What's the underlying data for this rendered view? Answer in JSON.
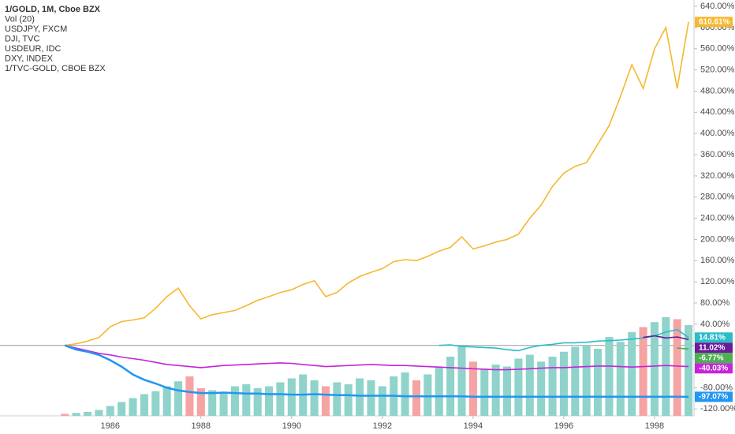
{
  "chart_data": {
    "type": "line",
    "x": [
      1985,
      1985.25,
      1985.5,
      1985.75,
      1986,
      1986.25,
      1986.5,
      1986.75,
      1987,
      1987.25,
      1987.5,
      1987.75,
      1988,
      1988.25,
      1988.5,
      1988.75,
      1989,
      1989.25,
      1989.5,
      1989.75,
      1990,
      1990.25,
      1990.5,
      1990.75,
      1991,
      1991.25,
      1991.5,
      1991.75,
      1992,
      1992.25,
      1992.5,
      1992.75,
      1993,
      1993.25,
      1993.5,
      1993.75,
      1994,
      1994.25,
      1994.5,
      1994.75,
      1995,
      1995.25,
      1995.5,
      1995.75,
      1996,
      1996.25,
      1996.5,
      1996.75,
      1997,
      1997.25,
      1997.5,
      1997.75,
      1998,
      1998.25,
      1998.5,
      1998.75
    ],
    "xlim": [
      1983.57,
      1998.87
    ],
    "xticks": [
      1986,
      1988,
      1990,
      1992,
      1994,
      1996,
      1998
    ],
    "ylim": [
      -133,
      652
    ],
    "yticks": [
      {
        "value": -120,
        "label": "-120.00%"
      },
      {
        "value": -80,
        "label": "-80.00%"
      },
      {
        "value": 40,
        "label": "40.00%"
      },
      {
        "value": 80,
        "label": "80.00%"
      },
      {
        "value": 120,
        "label": "120.00%"
      },
      {
        "value": 160,
        "label": "160.00%"
      },
      {
        "value": 200,
        "label": "200.00%"
      },
      {
        "value": 240,
        "label": "240.00%"
      },
      {
        "value": 280,
        "label": "280.00%"
      },
      {
        "value": 320,
        "label": "320.00%"
      },
      {
        "value": 360,
        "label": "360.00%"
      },
      {
        "value": 400,
        "label": "400.00%"
      },
      {
        "value": 440,
        "label": "440.00%"
      },
      {
        "value": 480,
        "label": "480.00%"
      },
      {
        "value": 520,
        "label": "520.00%"
      },
      {
        "value": 560,
        "label": "560.00%"
      },
      {
        "value": 600,
        "label": "600.00%"
      },
      {
        "value": 640,
        "label": "640.00%"
      }
    ],
    "series": [
      {
        "name": "1/GOLD, 1M, Cboe BZX",
        "color": "#f5b82e",
        "values": [
          0,
          3,
          8,
          15,
          35,
          45,
          48,
          52,
          70,
          92,
          108,
          75,
          50,
          58,
          62,
          66,
          75,
          85,
          92,
          100,
          105,
          115,
          122,
          92,
          100,
          118,
          130,
          138,
          145,
          158,
          162,
          160,
          168,
          178,
          185,
          205,
          182,
          188,
          195,
          200,
          210,
          240,
          265,
          300,
          325,
          338,
          345,
          380,
          415,
          470,
          530,
          485,
          560,
          600,
          485,
          610.61
        ],
        "value_labels": [
          null,
          null,
          null,
          null,
          null,
          null,
          null,
          null,
          null,
          null,
          null,
          null,
          null,
          null,
          null,
          null,
          null,
          null,
          null,
          null,
          null,
          null,
          null,
          null,
          null,
          null,
          null,
          null,
          null,
          null,
          null,
          null,
          null,
          null,
          null,
          null,
          null,
          null,
          null,
          null,
          null,
          null,
          null,
          null,
          null,
          null,
          null,
          null,
          null,
          null,
          null,
          null,
          null,
          null,
          null,
          "610.61%"
        ]
      },
      {
        "name": "USDJPY, FXCM",
        "color": "#c425d6",
        "values": [
          0,
          -5,
          -10,
          -15,
          -18,
          -22,
          -25,
          -28,
          -32,
          -36,
          -38,
          -40,
          -42,
          -40,
          -38,
          -37,
          -36,
          -35,
          -34,
          -33,
          -34,
          -36,
          -38,
          -40,
          -39,
          -38,
          -37,
          -36,
          -37,
          -38,
          -38,
          -39,
          -40,
          -41,
          -42,
          -43,
          -44,
          -45,
          -46,
          -46,
          -45,
          -44,
          -43,
          -42,
          -42,
          -41,
          -40,
          -39,
          -39,
          -40,
          -41,
          -40,
          -39,
          -38,
          -39,
          -40.03
        ],
        "value_labels": [
          null,
          null,
          null,
          null,
          null,
          null,
          null,
          null,
          null,
          null,
          null,
          null,
          null,
          null,
          null,
          null,
          null,
          null,
          null,
          null,
          null,
          null,
          null,
          null,
          null,
          null,
          null,
          null,
          null,
          null,
          null,
          null,
          null,
          null,
          null,
          null,
          null,
          null,
          null,
          null,
          null,
          null,
          null,
          null,
          null,
          null,
          null,
          null,
          null,
          null,
          null,
          null,
          null,
          null,
          null,
          "-40.03%"
        ]
      },
      {
        "name": "DJI, TVC",
        "color": "#4caf50",
        "values": [
          null,
          null,
          null,
          null,
          null,
          null,
          null,
          null,
          null,
          null,
          null,
          null,
          null,
          null,
          null,
          null,
          null,
          null,
          null,
          null,
          null,
          null,
          null,
          null,
          null,
          null,
          null,
          null,
          null,
          null,
          null,
          null,
          null,
          null,
          null,
          null,
          null,
          null,
          null,
          null,
          null,
          null,
          null,
          null,
          null,
          null,
          null,
          null,
          null,
          null,
          null,
          null,
          null,
          null,
          -5,
          -6.77
        ],
        "value_labels": [
          null,
          null,
          null,
          null,
          null,
          null,
          null,
          null,
          null,
          null,
          null,
          null,
          null,
          null,
          null,
          null,
          null,
          null,
          null,
          null,
          null,
          null,
          null,
          null,
          null,
          null,
          null,
          null,
          null,
          null,
          null,
          null,
          null,
          null,
          null,
          null,
          null,
          null,
          null,
          null,
          null,
          null,
          null,
          null,
          null,
          null,
          null,
          null,
          null,
          null,
          null,
          null,
          null,
          null,
          null,
          "-6.77%"
        ]
      },
      {
        "name": "USDEUR, IDC",
        "color": "#2bbcc8",
        "values": [
          null,
          null,
          null,
          null,
          null,
          null,
          null,
          null,
          null,
          null,
          null,
          null,
          null,
          null,
          null,
          null,
          null,
          null,
          null,
          null,
          null,
          null,
          null,
          null,
          null,
          null,
          null,
          null,
          null,
          null,
          null,
          null,
          null,
          0,
          1,
          -2,
          -3,
          -4,
          -5,
          -8,
          -10,
          -4,
          0,
          2,
          5,
          5,
          6,
          8,
          9,
          10,
          12,
          14,
          18,
          25,
          30,
          14.81
        ],
        "value_labels": [
          null,
          null,
          null,
          null,
          null,
          null,
          null,
          null,
          null,
          null,
          null,
          null,
          null,
          null,
          null,
          null,
          null,
          null,
          null,
          null,
          null,
          null,
          null,
          null,
          null,
          null,
          null,
          null,
          null,
          null,
          null,
          null,
          null,
          null,
          null,
          null,
          null,
          null,
          null,
          null,
          null,
          null,
          null,
          null,
          null,
          null,
          null,
          null,
          null,
          null,
          null,
          null,
          null,
          null,
          null,
          "14.81%"
        ]
      },
      {
        "name": "DXY, INDEX",
        "color": "#6a1b9a",
        "values": [
          null,
          null,
          null,
          null,
          null,
          null,
          null,
          null,
          null,
          null,
          null,
          null,
          null,
          null,
          null,
          null,
          null,
          null,
          null,
          null,
          null,
          null,
          null,
          null,
          null,
          null,
          null,
          null,
          null,
          null,
          null,
          null,
          null,
          null,
          null,
          null,
          null,
          null,
          null,
          null,
          null,
          null,
          null,
          null,
          null,
          null,
          null,
          null,
          null,
          null,
          null,
          15,
          18,
          14,
          16,
          11.02
        ],
        "value_labels": [
          null,
          null,
          null,
          null,
          null,
          null,
          null,
          null,
          null,
          null,
          null,
          null,
          null,
          null,
          null,
          null,
          null,
          null,
          null,
          null,
          null,
          null,
          null,
          null,
          null,
          null,
          null,
          null,
          null,
          null,
          null,
          null,
          null,
          null,
          null,
          null,
          null,
          null,
          null,
          null,
          null,
          null,
          null,
          null,
          null,
          null,
          null,
          null,
          null,
          null,
          null,
          null,
          null,
          null,
          null,
          "11.02%"
        ]
      },
      {
        "name": "1/TVC-GOLD, CBOE BZX",
        "color": "#2196f3",
        "values": [
          0,
          -8,
          -12,
          -18,
          -28,
          -40,
          -55,
          -65,
          -72,
          -80,
          -85,
          -88,
          -90,
          -90,
          -89,
          -90,
          -91,
          -91,
          -92,
          -92,
          -93,
          -93,
          -92,
          -93,
          -94,
          -94,
          -95,
          -95,
          -95,
          -95,
          -96,
          -96,
          -96,
          -96,
          -96,
          -96,
          -97,
          -97,
          -97,
          -97,
          -97,
          -97,
          -97,
          -97,
          -97,
          -97,
          -97,
          -97,
          -97,
          -97,
          -97,
          -97,
          -97,
          -97,
          -97,
          -97.07
        ],
        "value_labels": [
          null,
          null,
          null,
          null,
          null,
          null,
          null,
          null,
          null,
          null,
          null,
          null,
          null,
          null,
          null,
          null,
          null,
          null,
          null,
          null,
          null,
          null,
          null,
          null,
          null,
          null,
          null,
          null,
          null,
          null,
          null,
          null,
          null,
          null,
          null,
          null,
          null,
          null,
          null,
          null,
          null,
          null,
          null,
          null,
          null,
          null,
          null,
          null,
          null,
          null,
          null,
          null,
          null,
          null,
          null,
          "-97.07%"
        ]
      }
    ],
    "volume": {
      "name": "Vol (20)",
      "up_color": "#8fd3cb",
      "down_color": "#f5a3a3",
      "vlim": [
        0,
        100
      ],
      "values": [
        2,
        3,
        4,
        6,
        10,
        14,
        18,
        22,
        25,
        30,
        35,
        40,
        28,
        26,
        24,
        30,
        32,
        28,
        30,
        34,
        38,
        42,
        36,
        30,
        34,
        32,
        38,
        36,
        30,
        40,
        44,
        36,
        42,
        50,
        60,
        70,
        55,
        48,
        52,
        50,
        58,
        62,
        55,
        60,
        65,
        70,
        72,
        68,
        80,
        75,
        85,
        90,
        95,
        100,
        98,
        92
      ]
    }
  }
}
